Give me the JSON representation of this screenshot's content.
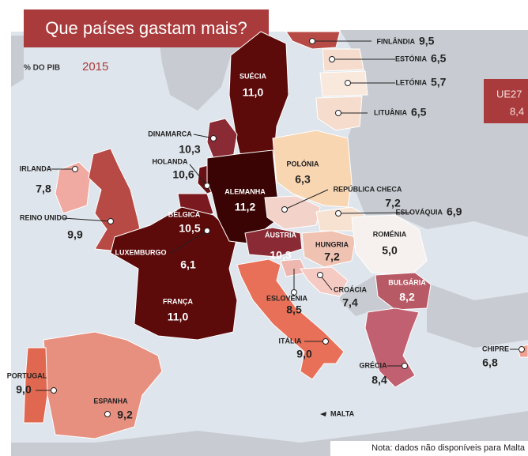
{
  "title": "Que países gastam mais?",
  "subtitle": "% DO PIB",
  "year": "2015",
  "eu": {
    "label": "UE27",
    "value": "8,4"
  },
  "note": "Nota: dados não disponíveis para Malta",
  "malta": "MALTA",
  "countries": [
    {
      "name": "FINLÂNDIA",
      "value": "9,5",
      "color": "#b84a45"
    },
    {
      "name": "ESTÓNIA",
      "value": "6,5",
      "color": "#f6dccd"
    },
    {
      "name": "LETÓNIA",
      "value": "5,7",
      "color": "#f9e8dc"
    },
    {
      "name": "LITUÂNIA",
      "value": "6,5",
      "color": "#f6dccd"
    },
    {
      "name": "SUÉCIA",
      "value": "11,0",
      "color": "#5c0a0a"
    },
    {
      "name": "DINAMARCA",
      "value": "10,3",
      "color": "#8a2a35"
    },
    {
      "name": "IRLANDA",
      "value": "7,8",
      "color": "#f0aaa2"
    },
    {
      "name": "REINO UNIDO",
      "value": "9,9",
      "color": "#b84a45"
    },
    {
      "name": "HOLANDA",
      "value": "10,6",
      "color": "#6a1015"
    },
    {
      "name": "BÉLGICA",
      "value": "10,5",
      "color": "#7a1a20"
    },
    {
      "name": "LUXEMBURGO",
      "value": "6,1",
      "color": "#f6dccd"
    },
    {
      "name": "FRANÇA",
      "value": "11,0",
      "color": "#5c0a0a"
    },
    {
      "name": "ALEMANHA",
      "value": "11,2",
      "color": "#3a0404"
    },
    {
      "name": "POLÓNIA",
      "value": "6,3",
      "color": "#f9d6b2"
    },
    {
      "name": "REPÚBLICA CHECA",
      "value": "7,2",
      "color": "#f3d2ca"
    },
    {
      "name": "ESLOVÁQUIA",
      "value": "6,9",
      "color": "#f7e2d2"
    },
    {
      "name": "ÁUSTRIA",
      "value": "10,3",
      "color": "#8a2a35"
    },
    {
      "name": "HUNGRIA",
      "value": "7,2",
      "color": "#f0c2b2"
    },
    {
      "name": "ROMÉNIA",
      "value": "5,0",
      "color": "#f6f1ee"
    },
    {
      "name": "ESLOVÉNIA",
      "value": "8,5",
      "color": "#eeb8b0"
    },
    {
      "name": "CROÁCIA",
      "value": "7,4",
      "color": "#f5cac2"
    },
    {
      "name": "BULGÁRIA",
      "value": "8,2",
      "color": "#b85a65"
    },
    {
      "name": "GRÉCIA",
      "value": "8,4",
      "color": "#c06070"
    },
    {
      "name": "ITÁLIA",
      "value": "9,0",
      "color": "#e87058"
    },
    {
      "name": "CHIPRE",
      "value": "6,8",
      "color": "#f0a090"
    },
    {
      "name": "ESPANHA",
      "value": "9,2",
      "color": "#e89080"
    },
    {
      "name": "PORTUGAL",
      "value": "9,0",
      "color": "#e06850"
    }
  ]
}
